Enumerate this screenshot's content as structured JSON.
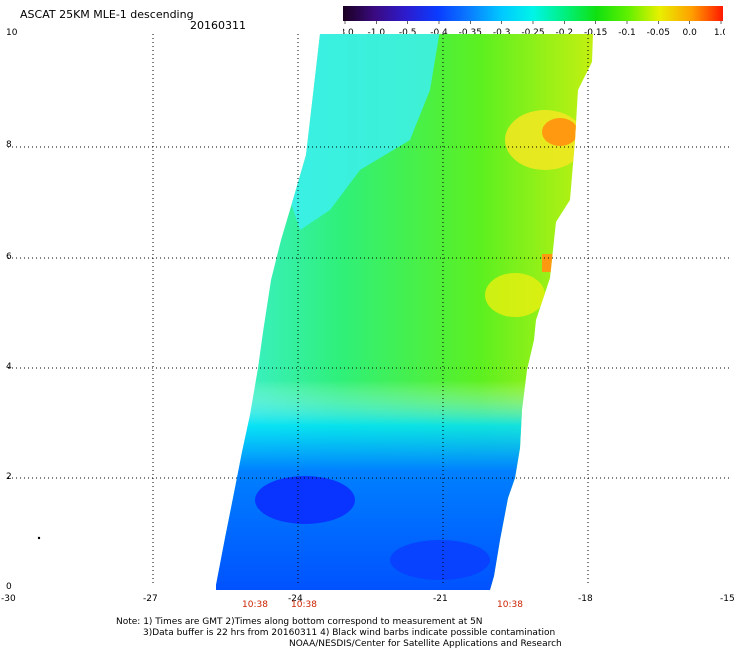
{
  "header": {
    "title": "ASCAT 25KM MLE-1 descending",
    "date": "20160311"
  },
  "colorbar": {
    "labels": [
      "-3.0",
      "-1.0",
      "-0.5",
      "-0.4",
      "-0.35",
      "-0.3",
      "-0.25",
      "-0.2",
      "-0.15",
      "-0.1",
      "-0.05",
      "0.0",
      "1.0"
    ],
    "colors": [
      "#1a0020",
      "#3a0a80",
      "#2c1ccf",
      "#0a3cff",
      "#0a7dff",
      "#00c8ff",
      "#00f4e8",
      "#00f080",
      "#10e010",
      "#60f000",
      "#e8f000",
      "#ffa000",
      "#ff1800"
    ]
  },
  "axes": {
    "x_ticks": [
      "-30",
      "-27",
      "-24",
      "-21",
      "-18",
      "-15"
    ],
    "y_ticks": [
      "0",
      "2",
      "4",
      "6",
      "8",
      "10"
    ],
    "xlim": [
      -30,
      -15
    ],
    "ylim": [
      0,
      10
    ]
  },
  "times": [
    "10:38",
    "10:38",
    "10:38"
  ],
  "notes": {
    "line1": "Note: 1) Times are GMT 2)Times along bottom correspond to measurement at 5N",
    "line2": "3)Data buffer is 22 hrs from 20160311 4) Black wind barbs indicate possible contamination",
    "line3": "NOAA/NESDIS/Center for Satellite Applications and Research"
  }
}
